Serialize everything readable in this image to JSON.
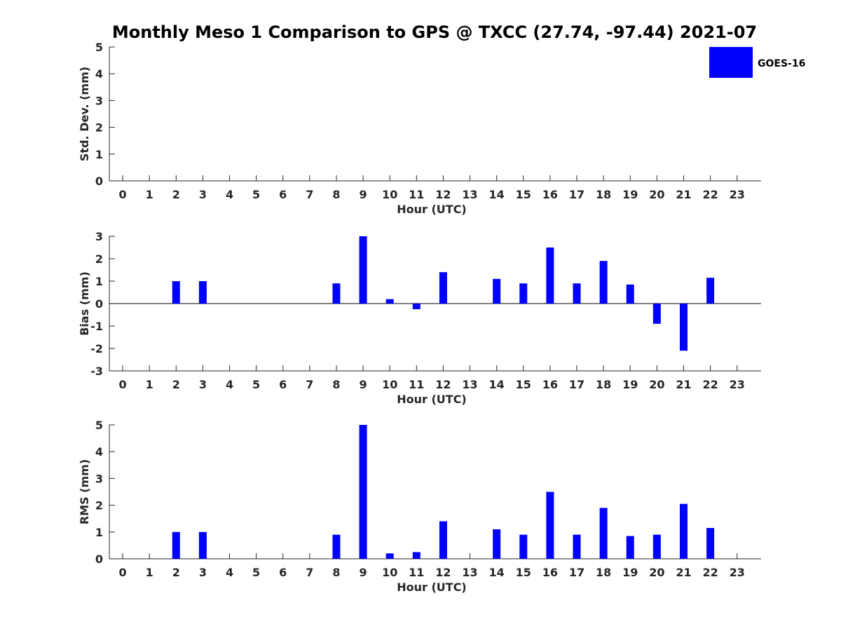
{
  "chart_data": {
    "type": "bar",
    "title": "Monthly Meso 1 Comparison to GPS @ TXCC (27.74, -97.44) 2021-07",
    "legend": {
      "label": "GOES-16",
      "placement": "top-right",
      "color": "#0000ff"
    },
    "bar_color": "#0000ff",
    "grid": false,
    "panels": [
      {
        "id": "std",
        "ylabel": "Std. Dev. (mm)",
        "xlabel": "Hour (UTC)",
        "ylim": [
          0,
          5
        ],
        "yticks": [
          0,
          1,
          2,
          3,
          4,
          5
        ],
        "x": [
          0,
          1,
          2,
          3,
          4,
          5,
          6,
          7,
          8,
          9,
          10,
          11,
          12,
          13,
          14,
          15,
          16,
          17,
          18,
          19,
          20,
          21,
          22,
          23
        ],
        "values": [
          null,
          null,
          null,
          null,
          null,
          null,
          null,
          null,
          null,
          null,
          null,
          null,
          null,
          null,
          null,
          null,
          null,
          null,
          null,
          null,
          null,
          null,
          null,
          null
        ]
      },
      {
        "id": "bias",
        "ylabel": "Bias (mm)",
        "xlabel": "Hour (UTC)",
        "ylim": [
          -3,
          3
        ],
        "yticks": [
          -3,
          -2,
          -1,
          0,
          1,
          2,
          3
        ],
        "x": [
          0,
          1,
          2,
          3,
          4,
          5,
          6,
          7,
          8,
          9,
          10,
          11,
          12,
          13,
          14,
          15,
          16,
          17,
          18,
          19,
          20,
          21,
          22,
          23
        ],
        "values": [
          null,
          null,
          1.0,
          1.0,
          null,
          null,
          null,
          null,
          0.9,
          3.0,
          0.2,
          -0.25,
          1.4,
          null,
          1.1,
          0.9,
          2.5,
          0.9,
          1.9,
          0.85,
          -0.9,
          -2.1,
          1.15,
          null
        ]
      },
      {
        "id": "rms",
        "ylabel": "RMS (mm)",
        "xlabel": "Hour (UTC)",
        "ylim": [
          0,
          5
        ],
        "yticks": [
          0,
          1,
          2,
          3,
          4,
          5
        ],
        "x": [
          0,
          1,
          2,
          3,
          4,
          5,
          6,
          7,
          8,
          9,
          10,
          11,
          12,
          13,
          14,
          15,
          16,
          17,
          18,
          19,
          20,
          21,
          22,
          23
        ],
        "values": [
          null,
          null,
          1.0,
          1.0,
          null,
          null,
          null,
          null,
          0.9,
          5.0,
          0.2,
          0.25,
          1.4,
          null,
          1.1,
          0.9,
          2.5,
          0.9,
          1.9,
          0.85,
          0.9,
          2.05,
          1.15,
          null
        ]
      }
    ]
  }
}
